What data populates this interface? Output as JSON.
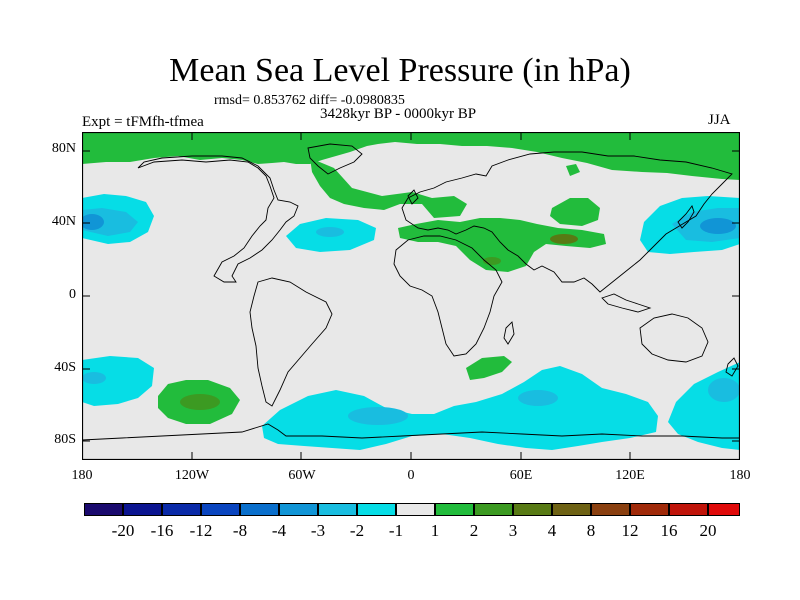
{
  "header": {
    "title": "Mean Sea Level Pressure (in hPa)",
    "stats": "rmsd= 0.853762 diff= -0.0980835",
    "period": "3428kyr BP - 0000kyr BP",
    "experiment": "Expt = tFMfh-tfmea",
    "season": "JJA"
  },
  "axes": {
    "lat_labels": [
      "80N",
      "40N",
      "0",
      "40S",
      "80S"
    ],
    "lon_labels": [
      "180",
      "120W",
      "60W",
      "0",
      "60E",
      "120E",
      "180"
    ]
  },
  "colorbar": {
    "labels": [
      "-20",
      "-16",
      "-12",
      "-8",
      "-4",
      "-3",
      "-2",
      "-1",
      "1",
      "2",
      "3",
      "4",
      "8",
      "12",
      "16",
      "20"
    ],
    "colors": [
      "#1a0a6e",
      "#0b1490",
      "#0a2aa8",
      "#0a45bf",
      "#0a6fcc",
      "#1195d6",
      "#19bde0",
      "#06dde6",
      "#e8e8e8",
      "#22bc3c",
      "#3c9a22",
      "#587a14",
      "#6e6214",
      "#8a4010",
      "#a02a0a",
      "#c0140a",
      "#e00a0a"
    ]
  },
  "field_colors": {
    "land_background": "#e8e8e8",
    "neg_1_2": "#06dde6",
    "neg_2_3": "#19bde0",
    "neg_3_4": "#1195d6",
    "neg_4_8": "#0a6fcc",
    "pos_1_2": "#22bc3c",
    "pos_2_3": "#3c9a22",
    "pos_3_4": "#587a14"
  }
}
